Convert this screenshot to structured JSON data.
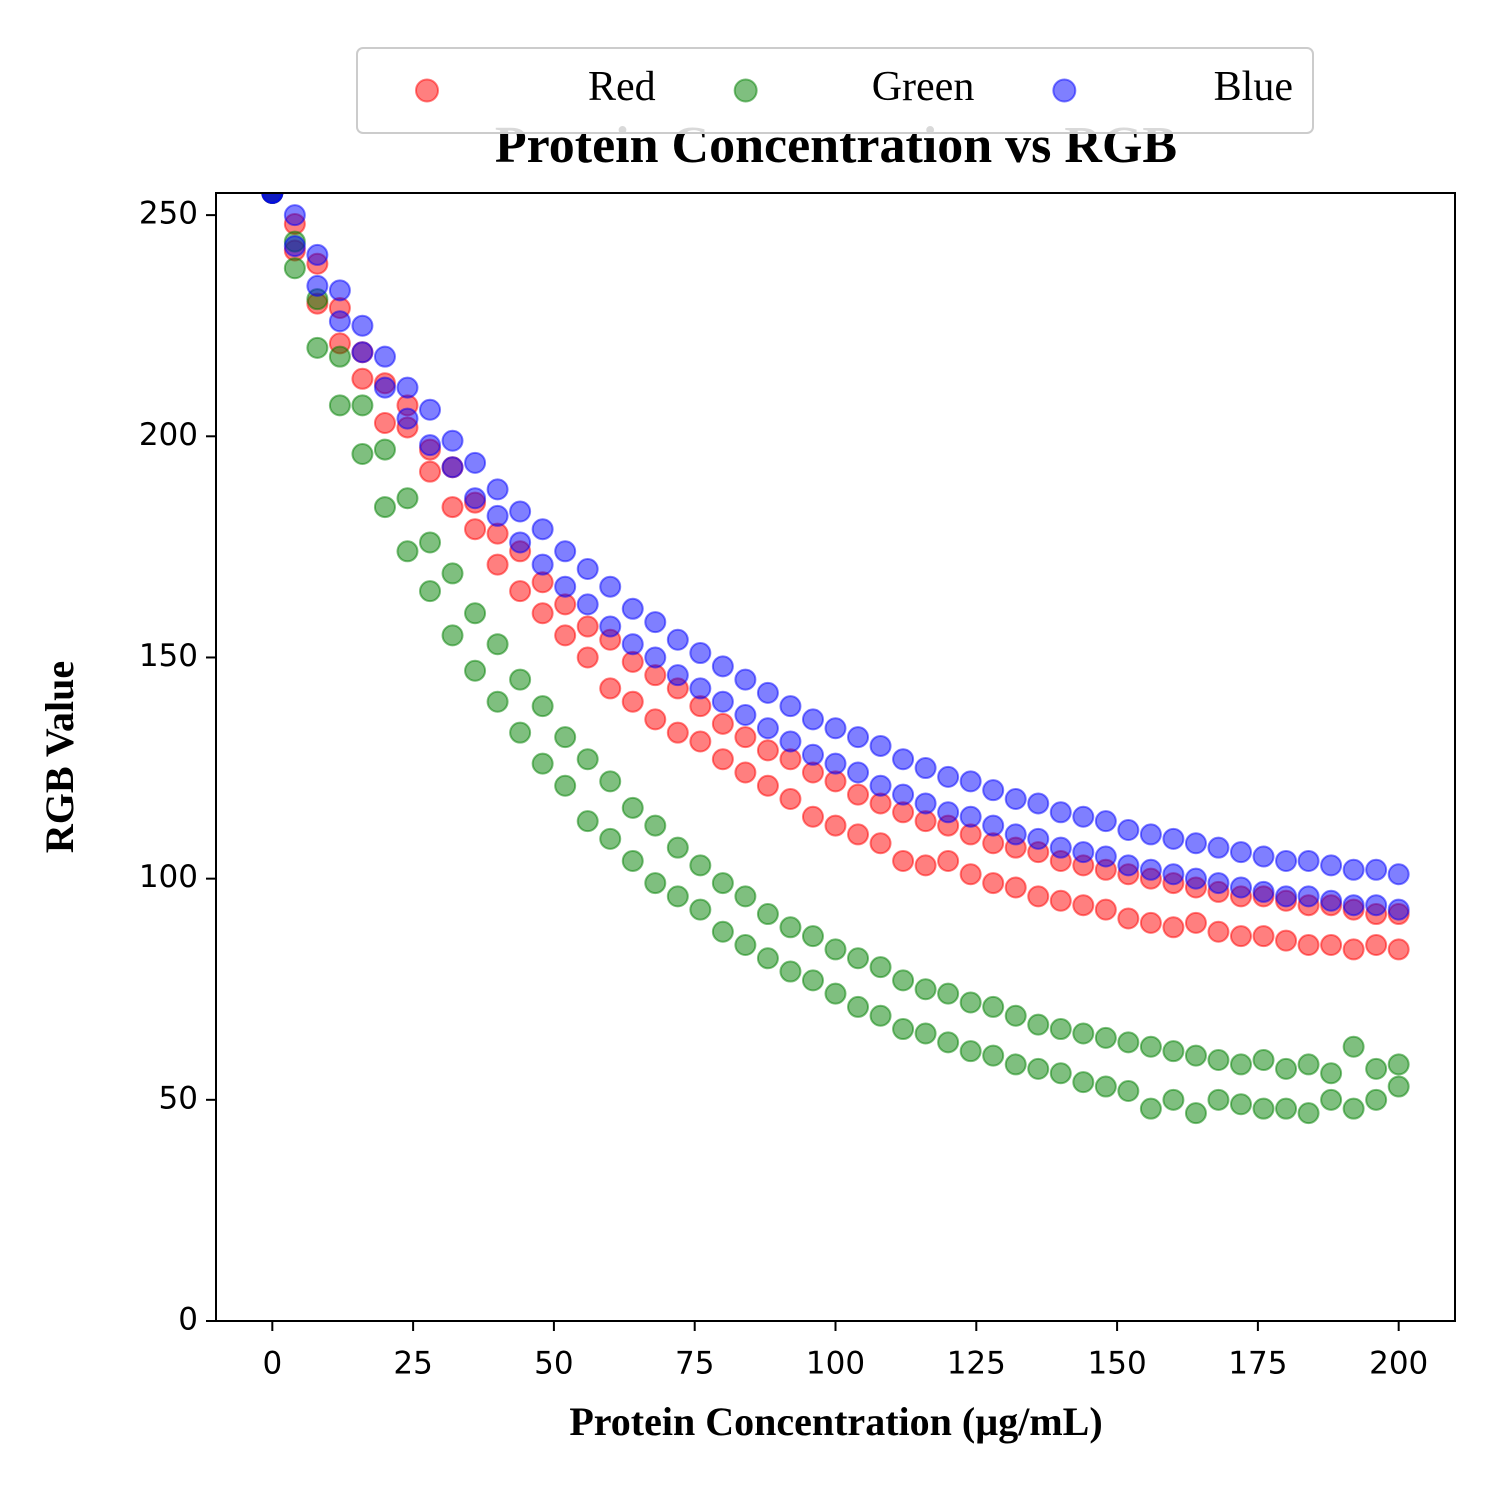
{
  "chart_data": {
    "type": "scatter",
    "title": "Protein Concentration vs RGB",
    "xlabel": "Protein Concentration (µg/mL)",
    "ylabel": "RGB Value",
    "xlim": [
      -10,
      210
    ],
    "ylim": [
      0,
      255
    ],
    "xticks": [
      0,
      25,
      50,
      75,
      100,
      125,
      150,
      175,
      200
    ],
    "yticks": [
      0,
      50,
      100,
      150,
      200,
      250
    ],
    "legend": "upper center",
    "grid": false,
    "alpha": 0.5,
    "x": [
      0,
      0,
      4,
      4,
      8,
      8,
      12,
      12,
      16,
      16,
      20,
      20,
      24,
      24,
      28,
      28,
      32,
      32,
      36,
      36,
      40,
      40,
      44,
      44,
      48,
      48,
      52,
      52,
      56,
      56,
      60,
      60,
      64,
      64,
      68,
      68,
      72,
      72,
      76,
      76,
      80,
      80,
      84,
      84,
      88,
      88,
      92,
      92,
      96,
      96,
      100,
      100,
      104,
      104,
      108,
      108,
      112,
      112,
      116,
      116,
      120,
      120,
      124,
      124,
      128,
      128,
      132,
      132,
      136,
      136,
      140,
      140,
      144,
      144,
      148,
      148,
      152,
      152,
      156,
      156,
      160,
      160,
      164,
      164,
      168,
      168,
      172,
      172,
      176,
      176,
      180,
      180,
      184,
      184,
      188,
      188,
      192,
      192,
      196,
      196,
      200,
      200
    ],
    "series": [
      {
        "name": "Red",
        "color": "#ff0000",
        "values": [
          255,
          255,
          248,
          242,
          239,
          230,
          229,
          221,
          213,
          219,
          212,
          203,
          202,
          207,
          197,
          192,
          193,
          184,
          179,
          185,
          178,
          171,
          174,
          165,
          167,
          160,
          162,
          155,
          150,
          157,
          154,
          143,
          149,
          140,
          146,
          136,
          143,
          133,
          131,
          139,
          135,
          127,
          132,
          124,
          121,
          129,
          127,
          118,
          124,
          114,
          122,
          112,
          110,
          119,
          117,
          108,
          115,
          104,
          113,
          103,
          112,
          104,
          110,
          101,
          108,
          99,
          98,
          107,
          106,
          96,
          104,
          95,
          103,
          94,
          93,
          102,
          101,
          91,
          100,
          90,
          99,
          89,
          90,
          98,
          97,
          88,
          96,
          87,
          87,
          96,
          95,
          86,
          94,
          85,
          85,
          94,
          93,
          84,
          92,
          85,
          92,
          84
        ]
      },
      {
        "name": "Green",
        "color": "#008000",
        "values": [
          255,
          255,
          244,
          238,
          231,
          220,
          218,
          207,
          196,
          207,
          184,
          197,
          186,
          174,
          165,
          176,
          169,
          155,
          160,
          147,
          153,
          140,
          133,
          145,
          139,
          126,
          121,
          132,
          127,
          113,
          109,
          122,
          116,
          104,
          112,
          99,
          107,
          96,
          93,
          103,
          99,
          88,
          96,
          85,
          82,
          92,
          89,
          79,
          87,
          77,
          84,
          74,
          82,
          71,
          69,
          80,
          77,
          66,
          75,
          65,
          74,
          63,
          72,
          61,
          60,
          71,
          69,
          58,
          67,
          57,
          66,
          56,
          65,
          54,
          53,
          64,
          63,
          52,
          62,
          48,
          61,
          50,
          47,
          60,
          59,
          50,
          58,
          49,
          59,
          48,
          57,
          48,
          58,
          47,
          56,
          50,
          62,
          48,
          57,
          50,
          58,
          53
        ]
      },
      {
        "name": "Blue",
        "color": "#0000ff",
        "values": [
          255,
          255,
          250,
          243,
          241,
          234,
          233,
          226,
          225,
          219,
          218,
          211,
          211,
          204,
          206,
          198,
          199,
          193,
          194,
          186,
          188,
          182,
          183,
          176,
          179,
          171,
          174,
          166,
          170,
          162,
          166,
          157,
          161,
          153,
          158,
          150,
          154,
          146,
          151,
          143,
          148,
          140,
          145,
          137,
          142,
          134,
          139,
          131,
          136,
          128,
          134,
          126,
          132,
          124,
          130,
          121,
          127,
          119,
          125,
          117,
          123,
          115,
          122,
          114,
          120,
          112,
          118,
          110,
          117,
          109,
          115,
          107,
          114,
          106,
          113,
          105,
          111,
          103,
          110,
          102,
          109,
          101,
          108,
          100,
          107,
          99,
          106,
          98,
          105,
          97,
          104,
          96,
          104,
          96,
          103,
          95,
          102,
          94,
          102,
          94,
          101,
          93
        ]
      }
    ]
  }
}
